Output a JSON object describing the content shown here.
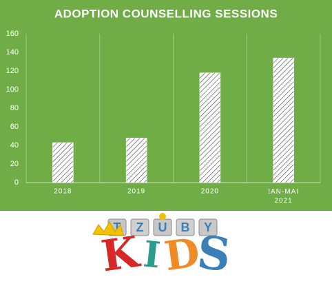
{
  "chart_data": {
    "type": "bar",
    "title": "ADOPTION COUNSELLING SESSIONS",
    "categories": [
      "2018",
      "2019",
      "2020",
      "IAN-MAI 2021"
    ],
    "values": [
      43,
      48,
      118,
      134
    ],
    "color": "#ffffff",
    "ylim": [
      0,
      160
    ],
    "yticks": [
      0,
      20,
      40,
      60,
      80,
      100,
      120,
      140,
      160
    ],
    "grid": true
  },
  "logo": {
    "top": "TZUBY",
    "bottom": "KIDS"
  }
}
